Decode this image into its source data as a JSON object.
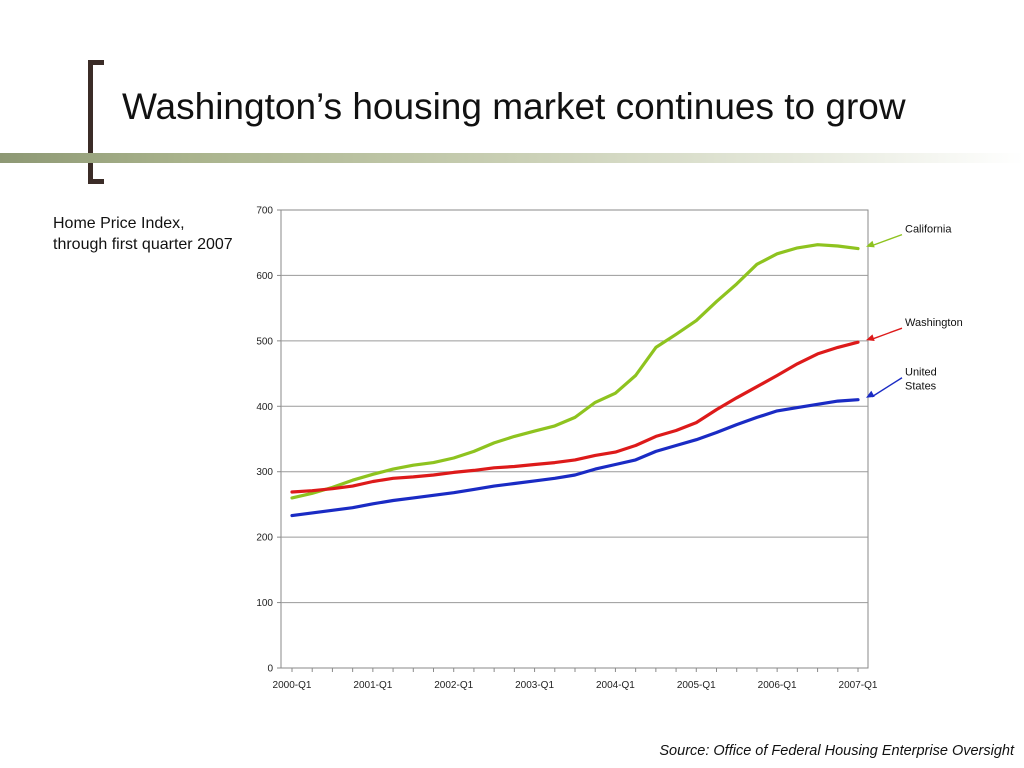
{
  "slide": {
    "title": "Washington’s housing market continues to grow",
    "side_text": "Home Price Index, through first quarter 2007",
    "source": "Source: Office of Federal Housing Enterprise Oversight"
  },
  "chart_data": {
    "type": "line",
    "title": "",
    "xlabel": "",
    "ylabel": "",
    "ylim": [
      0,
      700
    ],
    "yticks": [
      0,
      100,
      200,
      300,
      400,
      500,
      600,
      700
    ],
    "xtick_labels": [
      "2000-Q1",
      "2001-Q1",
      "2002-Q1",
      "2003-Q1",
      "2004-Q1",
      "2005-Q1",
      "2006-Q1",
      "2007-Q1"
    ],
    "x": [
      "2000-Q1",
      "2000-Q2",
      "2000-Q3",
      "2000-Q4",
      "2001-Q1",
      "2001-Q2",
      "2001-Q3",
      "2001-Q4",
      "2002-Q1",
      "2002-Q2",
      "2002-Q3",
      "2002-Q4",
      "2003-Q1",
      "2003-Q2",
      "2003-Q3",
      "2003-Q4",
      "2004-Q1",
      "2004-Q2",
      "2004-Q3",
      "2004-Q4",
      "2005-Q1",
      "2005-Q2",
      "2005-Q3",
      "2005-Q4",
      "2006-Q1",
      "2006-Q2",
      "2006-Q3",
      "2006-Q4",
      "2007-Q1"
    ],
    "grid": true,
    "legend": "annotations at right of series ends",
    "series": [
      {
        "name": "California",
        "color": "#8ec31f",
        "values": [
          260,
          267,
          276,
          287,
          296,
          304,
          310,
          314,
          321,
          331,
          344,
          354,
          362,
          370,
          383,
          406,
          420,
          447,
          490,
          510,
          531,
          560,
          587,
          617,
          633,
          642,
          647,
          645,
          641
        ]
      },
      {
        "name": "Washington",
        "color": "#dd1a1a",
        "values": [
          269,
          271,
          274,
          278,
          285,
          290,
          292,
          295,
          299,
          302,
          306,
          308,
          311,
          314,
          318,
          325,
          330,
          340,
          354,
          363,
          375,
          395,
          413,
          430,
          447,
          465,
          480,
          490,
          498
        ]
      },
      {
        "name": "United States",
        "color": "#1a2bc4",
        "values": [
          233,
          237,
          241,
          245,
          251,
          256,
          260,
          264,
          268,
          273,
          278,
          282,
          286,
          290,
          295,
          304,
          311,
          318,
          331,
          340,
          349,
          360,
          372,
          383,
          393,
          398,
          403,
          408,
          410
        ]
      }
    ],
    "annotations": [
      {
        "series": "California",
        "lines": [
          "California"
        ],
        "color": "#8ec31f"
      },
      {
        "series": "Washington",
        "lines": [
          "Washington"
        ],
        "color": "#dd1a1a"
      },
      {
        "series": "United States",
        "lines": [
          "United",
          "States"
        ],
        "color": "#1a2bc4"
      }
    ]
  }
}
